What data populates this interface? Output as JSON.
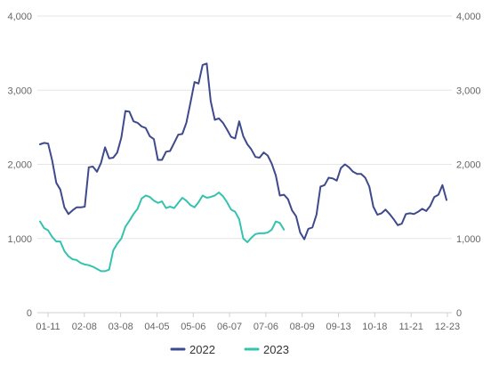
{
  "chart_data": {
    "type": "line",
    "title": "",
    "xlabel": "",
    "ylabel": "",
    "ylim": [
      0,
      4000
    ],
    "y_ticks": [
      0,
      1000,
      2000,
      3000,
      4000
    ],
    "y_tick_labels": [
      "0",
      "1,000",
      "2,000",
      "3,000",
      "4,000"
    ],
    "secondary_y_axis": {
      "ylim": [
        0,
        4000
      ],
      "y_tick_labels": [
        "0",
        "1,000",
        "2,000",
        "3,000",
        "4,000"
      ]
    },
    "x_tick_labels": [
      "01-11",
      "02-08",
      "03-08",
      "04-05",
      "05-06",
      "06-07",
      "07-06",
      "08-09",
      "09-13",
      "10-18",
      "11-21",
      "12-23"
    ],
    "grid": "horizontal",
    "legend": "bottom-center",
    "colors": {
      "2022": "#3f4a8c",
      "2023": "#35c3ae",
      "grid": "#e6e6e6",
      "tick_text": "#666666"
    },
    "series": [
      {
        "name": "2022",
        "values": [
          2270,
          2290,
          2280,
          2050,
          1750,
          1660,
          1420,
          1330,
          1380,
          1420,
          1420,
          1430,
          1960,
          1970,
          1900,
          2020,
          2230,
          2080,
          2090,
          2160,
          2360,
          2720,
          2710,
          2580,
          2560,
          2510,
          2490,
          2380,
          2340,
          2060,
          2060,
          2170,
          2180,
          2290,
          2400,
          2410,
          2560,
          2830,
          3110,
          3090,
          3340,
          3360,
          2850,
          2600,
          2620,
          2560,
          2470,
          2370,
          2350,
          2580,
          2380,
          2270,
          2200,
          2100,
          2090,
          2160,
          2120,
          2010,
          1850,
          1580,
          1590,
          1530,
          1380,
          1300,
          1080,
          990,
          1130,
          1150,
          1320,
          1700,
          1720,
          1820,
          1810,
          1780,
          1950,
          2000,
          1960,
          1900,
          1870,
          1870,
          1820,
          1700,
          1430,
          1320,
          1340,
          1390,
          1330,
          1260,
          1180,
          1200,
          1330,
          1340,
          1330,
          1360,
          1400,
          1370,
          1440,
          1560,
          1590,
          1720,
          1520
        ]
      },
      {
        "name": "2023",
        "values": [
          1230,
          1140,
          1110,
          1020,
          960,
          960,
          830,
          760,
          720,
          710,
          670,
          650,
          640,
          620,
          590,
          560,
          560,
          580,
          840,
          930,
          1000,
          1160,
          1240,
          1330,
          1400,
          1540,
          1580,
          1560,
          1510,
          1480,
          1500,
          1410,
          1430,
          1410,
          1480,
          1550,
          1510,
          1450,
          1420,
          1490,
          1580,
          1550,
          1560,
          1580,
          1620,
          1570,
          1490,
          1390,
          1360,
          1260,
          1000,
          950,
          1010,
          1060,
          1070,
          1070,
          1080,
          1120,
          1230,
          1210,
          1120
        ]
      }
    ]
  }
}
